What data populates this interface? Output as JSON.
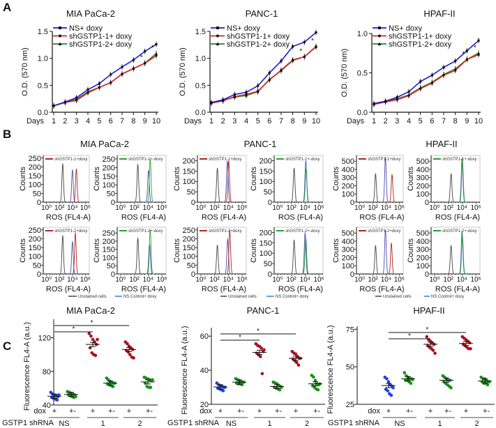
{
  "panel_labels": [
    "A",
    "B",
    "C"
  ],
  "colors": {
    "ns": "#1a1ae0",
    "sh1": "#e02020",
    "sh2": "#2e7d32",
    "unstained": "#444444",
    "hist_ns": "#4b4bb0",
    "hist_red": "#b22222",
    "hist_green": "#22a03a",
    "legend_ns": "#1e88e5",
    "dot_blue": "#1f3fe0",
    "dot_green": "#1a8f1a",
    "dot_red": "#aa1020"
  },
  "chart_data": [
    {
      "type": "line",
      "panel": "A",
      "title": "MIA PaCa-2",
      "xlabel": "Days",
      "ylabel": "O.D. (570 nm)",
      "x": [
        1,
        2,
        3,
        4,
        5,
        6,
        7,
        8,
        9,
        10
      ],
      "ylim": [
        0,
        1.5
      ],
      "yticks": [
        "0.0",
        "0.5",
        "1.0",
        "1.5"
      ],
      "ytick_values": [
        0,
        0.5,
        1.0,
        1.5
      ],
      "significance": [
        {
          "day": 9,
          "label": "*"
        },
        {
          "day": 10,
          "label": "*"
        }
      ],
      "series": [
        {
          "name": "NS+ doxy",
          "marker": "square",
          "values": [
            0.12,
            0.19,
            0.27,
            0.42,
            0.53,
            0.7,
            0.84,
            0.97,
            1.13,
            1.26
          ]
        },
        {
          "name": "shGSTP1-1+ doxy",
          "marker": "circle",
          "values": [
            0.12,
            0.18,
            0.22,
            0.36,
            0.46,
            0.55,
            0.71,
            0.81,
            0.91,
            1.05
          ]
        },
        {
          "name": "shGSTP1-2+ doxy",
          "marker": "triangle",
          "values": [
            0.12,
            0.18,
            0.24,
            0.38,
            0.46,
            0.55,
            0.71,
            0.81,
            0.91,
            1.09
          ]
        }
      ]
    },
    {
      "type": "line",
      "panel": "A",
      "title": "PANC-1",
      "xlabel": "Days",
      "ylabel": "O.D. (570 nm)",
      "x": [
        1,
        2,
        3,
        4,
        5,
        6,
        7,
        8,
        9,
        10
      ],
      "ylim": [
        0,
        1.5
      ],
      "yticks": [
        "0.0",
        "0.5",
        "1.0",
        "1.5"
      ],
      "ytick_values": [
        0,
        0.5,
        1.0,
        1.5
      ],
      "significance": [
        {
          "day": 9,
          "label": "*"
        },
        {
          "day": 10,
          "label": "*"
        }
      ],
      "series": [
        {
          "name": "NS+ doxy",
          "marker": "square",
          "values": [
            0.18,
            0.23,
            0.33,
            0.37,
            0.49,
            0.73,
            0.95,
            1.22,
            1.3,
            1.48
          ]
        },
        {
          "name": "shGSTP1-1+ doxy",
          "marker": "circle",
          "values": [
            0.17,
            0.21,
            0.29,
            0.33,
            0.39,
            0.6,
            0.78,
            0.97,
            1.03,
            1.22
          ]
        },
        {
          "name": "shGSTP1-2+ doxy",
          "marker": "triangle",
          "values": [
            0.17,
            0.22,
            0.28,
            0.31,
            0.38,
            0.61,
            0.77,
            0.96,
            1.03,
            1.21
          ]
        }
      ]
    },
    {
      "type": "line",
      "panel": "A",
      "title": "HPAF-II",
      "xlabel": "Days",
      "ylabel": "O.D. (570 nm)",
      "x": [
        1,
        2,
        3,
        4,
        5,
        6,
        7,
        8,
        9,
        10
      ],
      "ylim": [
        0,
        1.0
      ],
      "yticks": [
        "0.0",
        "0.5",
        "1.0"
      ],
      "ytick_values": [
        0,
        0.5,
        1.0
      ],
      "significance": [
        {
          "day": 9,
          "label": "*"
        },
        {
          "day": 10,
          "label": "*"
        }
      ],
      "series": [
        {
          "name": "NS+ doxy",
          "marker": "square",
          "values": [
            0.11,
            0.14,
            0.19,
            0.26,
            0.39,
            0.47,
            0.57,
            0.65,
            0.78,
            0.91
          ]
        },
        {
          "name": "shGSTP1-1+ doxy",
          "marker": "circle",
          "values": [
            0.1,
            0.13,
            0.16,
            0.21,
            0.3,
            0.37,
            0.47,
            0.53,
            0.67,
            0.73
          ]
        },
        {
          "name": "shGSTP1-2+ doxy",
          "marker": "triangle",
          "values": [
            0.1,
            0.14,
            0.17,
            0.22,
            0.31,
            0.38,
            0.48,
            0.55,
            0.67,
            0.75
          ]
        }
      ]
    },
    {
      "type": "histogram",
      "panel": "B",
      "title": "MIA PaCa-2",
      "xlabel": "ROS (FL4-A)",
      "ylabel": "Counts",
      "xscale": "log",
      "xticks": [
        "10⁰",
        "10²",
        "10⁴",
        "10⁶"
      ],
      "plots": [
        {
          "legend": "shGSTP1-1+doxy",
          "treated_color": "hist_red",
          "ylim": [
            0,
            265
          ],
          "yticks": [
            0,
            50,
            100,
            150,
            200,
            250
          ],
          "peaks": {
            "unstained": [
              2.5,
              220
            ],
            "ns": [
              4.0,
              185
            ],
            "treated": [
              4.6,
              190
            ]
          }
        },
        {
          "legend": "shGSTP1-1+-doxy",
          "treated_color": "hist_green",
          "ylim": [
            0,
            270
          ],
          "yticks": [
            0,
            50,
            100,
            150,
            200,
            250
          ],
          "peaks": {
            "unstained": [
              2.5,
              220
            ],
            "ns": [
              4.05,
              185
            ],
            "treated": [
              4.3,
              250
            ]
          }
        },
        {
          "legend": "shGSTP1-2+doxy",
          "treated_color": "hist_red",
          "ylim": [
            0,
            265
          ],
          "yticks": [
            0,
            50,
            100,
            150,
            200,
            250
          ],
          "peaks": {
            "unstained": [
              2.5,
              220
            ],
            "ns": [
              4.0,
              185
            ],
            "treated": [
              4.45,
              235
            ]
          }
        },
        {
          "legend": "shGSTP1-2+-doxy",
          "treated_color": "hist_green",
          "ylim": [
            0,
            285
          ],
          "yticks": [
            0,
            50,
            100,
            150,
            200,
            250
          ],
          "peaks": {
            "unstained": [
              2.5,
              220
            ],
            "ns": [
              4.2,
              185
            ],
            "treated": [
              4.3,
              270
            ]
          }
        }
      ]
    },
    {
      "type": "histogram",
      "panel": "B",
      "title": "PANC-1",
      "xlabel": "ROS (FL4-A)",
      "ylabel": "Counts",
      "xscale": "log",
      "xticks": [
        "10⁰",
        "10²",
        "10⁴",
        "10⁶"
      ],
      "plots": [
        {
          "legend": "shGSTP1-1+doxy",
          "treated_color": "hist_red",
          "ylim": [
            0,
            225
          ],
          "yticks": [
            0,
            50,
            100,
            150,
            200
          ],
          "peaks": {
            "unstained": [
              2.4,
              165
            ],
            "ns": [
              3.85,
              200
            ],
            "treated": [
              4.05,
              200
            ]
          }
        },
        {
          "legend": "shGSTP1-1+-doxy",
          "treated_color": "hist_green",
          "ylim": [
            0,
            225
          ],
          "yticks": [
            0,
            50,
            100,
            150,
            200
          ],
          "peaks": {
            "unstained": [
              2.4,
              165
            ],
            "ns": [
              4.1,
              200
            ],
            "treated": [
              4.15,
              165
            ]
          }
        },
        {
          "legend": "shGSTP1-2+doxy",
          "treated_color": "hist_red",
          "ylim": [
            0,
            265
          ],
          "yticks": [
            0,
            50,
            100,
            150,
            200,
            250
          ],
          "peaks": {
            "unstained": [
              2.4,
              165
            ],
            "ns": [
              3.9,
              200
            ],
            "treated": [
              4.2,
              250
            ]
          }
        },
        {
          "legend": "shGSTP1-2+-doxy",
          "treated_color": "hist_green",
          "ylim": [
            0,
            225
          ],
          "yticks": [
            0,
            50,
            100,
            150,
            200
          ],
          "peaks": {
            "unstained": [
              2.4,
              165
            ],
            "ns": [
              4.0,
              200
            ],
            "treated": [
              4.1,
              175
            ]
          }
        }
      ]
    },
    {
      "type": "histogram",
      "panel": "B",
      "title": "HPAF-II",
      "xlabel": "ROS (FL4-A)",
      "ylabel": "Counts",
      "xscale": "log",
      "xticks": [
        "10⁰",
        "10²",
        "10⁴",
        "10⁶"
      ],
      "plots": [
        {
          "legend": "shGSTP1-1+doxy",
          "treated_color": "hist_red",
          "ylim": [
            0,
            570
          ],
          "yticks": [
            0,
            100,
            200,
            300,
            400,
            500
          ],
          "peaks": {
            "unstained": [
              2.4,
              350
            ],
            "ns": [
              3.9,
              550
            ],
            "treated": [
              4.9,
              340
            ]
          }
        },
        {
          "legend": "shGSTP1-1+-doxy",
          "treated_color": "hist_green",
          "ylim": [
            0,
            570
          ],
          "yticks": [
            0,
            100,
            200,
            300,
            400,
            500
          ],
          "peaks": {
            "unstained": [
              2.4,
              350
            ],
            "ns": [
              4.0,
              540
            ],
            "treated": [
              4.05,
              520
            ]
          }
        },
        {
          "legend": "shGSTP1-2+doxy",
          "treated_color": "hist_red",
          "ylim": [
            0,
            570
          ],
          "yticks": [
            0,
            100,
            200,
            300,
            400,
            500
          ],
          "peaks": {
            "unstained": [
              2.4,
              350
            ],
            "ns": [
              3.9,
              540
            ],
            "treated": [
              4.8,
              380
            ]
          }
        },
        {
          "legend": "shGSTP1-2+-doxy",
          "treated_color": "hist_green",
          "ylim": [
            0,
            570
          ],
          "yticks": [
            0,
            100,
            200,
            300,
            400,
            500
          ],
          "peaks": {
            "unstained": [
              2.4,
              350
            ],
            "ns": [
              4.0,
              520
            ],
            "treated": [
              4.05,
              470
            ]
          }
        }
      ]
    },
    {
      "type": "scatter",
      "panel": "C",
      "title": "MIA PaCa-2",
      "ylabel": "Fluorescence FL4-A (a.u.)",
      "ylim": [
        40,
        142
      ],
      "yticks": [
        40,
        80,
        120
      ],
      "row1_label": "dox",
      "row2_label": "GSTP1 shRNA",
      "shrna_labels": [
        "NS",
        "1",
        "2"
      ],
      "groups": [
        {
          "dox": "+",
          "color": "dot_blue",
          "mean": 50.5,
          "values": [
            55,
            53,
            52,
            51,
            50,
            49,
            48,
            47,
            46,
            52
          ]
        },
        {
          "dox": "+-",
          "color": "dot_green",
          "mean": 52.5,
          "values": [
            56,
            55,
            54,
            53,
            52,
            52,
            51,
            50,
            49,
            50
          ]
        },
        {
          "dox": "+",
          "color": "dot_red",
          "mean": 112,
          "values": [
            125,
            122,
            118,
            115,
            112,
            108,
            102,
            100,
            99,
            118
          ]
        },
        {
          "dox": "+-",
          "color": "dot_green",
          "mean": 66,
          "values": [
            72,
            70,
            68,
            67,
            66,
            65,
            64,
            63,
            62,
            66
          ]
        },
        {
          "dox": "+",
          "color": "dot_red",
          "mean": 106,
          "values": [
            115,
            113,
            110,
            108,
            106,
            105,
            103,
            100,
            97,
            96
          ]
        },
        {
          "dox": "+-",
          "color": "dot_green",
          "mean": 67.5,
          "values": [
            73,
            72,
            71,
            70,
            69,
            66,
            62,
            61,
            61,
            70
          ]
        }
      ],
      "significance": [
        {
          "from": 0,
          "to": 2,
          "label": "*"
        },
        {
          "from": 0,
          "to": 4,
          "label": "*"
        }
      ]
    },
    {
      "type": "scatter",
      "panel": "C",
      "title": "PANC-1",
      "ylabel": "Fluorescence FL4-A (a.u.)",
      "ylim": [
        20,
        65
      ],
      "yticks": [
        20,
        40,
        60
      ],
      "row1_label": "dox",
      "row2_label": "GSTP1 shRNA",
      "shrna_labels": [
        "NS",
        "1",
        "2"
      ],
      "groups": [
        {
          "dox": "+",
          "color": "dot_blue",
          "mean": 30.2,
          "values": [
            32.5,
            31.5,
            31,
            30.5,
            30,
            29.5,
            29,
            28.5,
            28,
            30
          ]
        },
        {
          "dox": "+-",
          "color": "dot_green",
          "mean": 33,
          "values": [
            35,
            34.5,
            34,
            33.5,
            33,
            32.5,
            32,
            32,
            31.5,
            33
          ]
        },
        {
          "dox": "+",
          "color": "dot_red",
          "mean": 50.5,
          "values": [
            55.5,
            54.5,
            54,
            53,
            51,
            50,
            49,
            48,
            38,
            52
          ]
        },
        {
          "dox": "+-",
          "color": "dot_green",
          "mean": 30.5,
          "values": [
            33,
            32.5,
            32,
            31,
            30.5,
            30,
            29.5,
            29,
            28.5,
            30
          ]
        },
        {
          "dox": "+",
          "color": "dot_red",
          "mean": 47,
          "values": [
            51,
            50,
            49.5,
            48,
            47,
            46.5,
            45.5,
            44.5,
            43,
            47
          ]
        },
        {
          "dox": "+-",
          "color": "dot_green",
          "mean": 32,
          "values": [
            37,
            36,
            34,
            32,
            31.5,
            31,
            30,
            29,
            28.5,
            32
          ]
        }
      ],
      "significance": [
        {
          "from": 0,
          "to": 2,
          "label": "*"
        },
        {
          "from": 0,
          "to": 4,
          "label": "*"
        }
      ]
    },
    {
      "type": "scatter",
      "panel": "C",
      "title": "HPAF-II",
      "ylabel": "Fluorescence FL4-A (a.u.)",
      "ylim": [
        25,
        77
      ],
      "yticks": [
        25,
        50,
        75
      ],
      "row1_label": "dox",
      "row2_label": "GSTP1 shRNA",
      "shrna_labels": [
        "NS",
        "1",
        "2"
      ],
      "groups": [
        {
          "dox": "+",
          "color": "dot_blue",
          "mean": 37.5,
          "values": [
            43,
            42,
            40,
            38,
            37,
            35,
            34,
            32,
            31,
            36
          ]
        },
        {
          "dox": "+-",
          "color": "dot_green",
          "mean": 42,
          "values": [
            46,
            44,
            43,
            42,
            42,
            41,
            41,
            40,
            39,
            41.5
          ]
        },
        {
          "dox": "+",
          "color": "dot_red",
          "mean": 65,
          "values": [
            70,
            68,
            67,
            66,
            65,
            64,
            63,
            62,
            61,
            59
          ]
        },
        {
          "dox": "+-",
          "color": "dot_green",
          "mean": 41,
          "values": [
            44,
            43,
            42,
            41,
            41,
            40,
            39,
            38,
            37,
            36
          ]
        },
        {
          "dox": "+",
          "color": "dot_red",
          "mean": 65.5,
          "values": [
            70,
            69,
            68,
            67,
            66,
            65,
            64,
            63,
            62,
            62
          ]
        },
        {
          "dox": "+-",
          "color": "dot_green",
          "mean": 40.5,
          "values": [
            43,
            42,
            42,
            41,
            40,
            40,
            39,
            39,
            38,
            40
          ]
        }
      ],
      "significance": [
        {
          "from": 0,
          "to": 2,
          "label": "*"
        },
        {
          "from": 0,
          "to": 4,
          "label": "*"
        }
      ]
    }
  ],
  "hist_legend": [
    {
      "label": "Unstained cells",
      "color": "unstained"
    },
    {
      "label": "NS Control+ doxy",
      "color": "legend_ns"
    }
  ]
}
